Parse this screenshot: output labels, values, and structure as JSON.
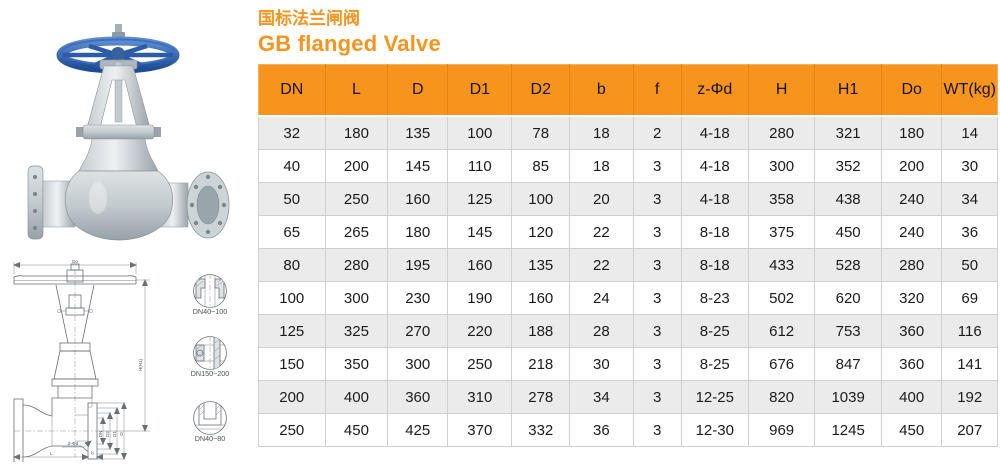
{
  "header": {
    "title_cn": "国标法兰闸阀",
    "title_en": "GB flanged Valve",
    "accent_color": "#F7941E"
  },
  "table": {
    "headers": [
      "DN",
      "L",
      "D",
      "D1",
      "D2",
      "b",
      "f",
      "z-Φd",
      "H",
      "H1",
      "Do",
      "WT(kg)"
    ],
    "rows": [
      [
        "32",
        "180",
        "135",
        "100",
        "78",
        "18",
        "2",
        "4-18",
        "280",
        "321",
        "180",
        "14"
      ],
      [
        "40",
        "200",
        "145",
        "110",
        "85",
        "18",
        "3",
        "4-18",
        "300",
        "352",
        "200",
        "30"
      ],
      [
        "50",
        "250",
        "160",
        "125",
        "100",
        "20",
        "3",
        "4-18",
        "358",
        "438",
        "240",
        "34"
      ],
      [
        "65",
        "265",
        "180",
        "145",
        "120",
        "22",
        "3",
        "8-18",
        "375",
        "450",
        "240",
        "36"
      ],
      [
        "80",
        "280",
        "195",
        "160",
        "135",
        "22",
        "3",
        "8-18",
        "433",
        "528",
        "280",
        "50"
      ],
      [
        "100",
        "300",
        "230",
        "190",
        "160",
        "24",
        "3",
        "8-23",
        "502",
        "620",
        "320",
        "69"
      ],
      [
        "125",
        "325",
        "270",
        "220",
        "188",
        "28",
        "3",
        "8-25",
        "612",
        "753",
        "360",
        "116"
      ],
      [
        "150",
        "350",
        "300",
        "250",
        "218",
        "30",
        "3",
        "8-25",
        "676",
        "847",
        "360",
        "141"
      ],
      [
        "200",
        "400",
        "360",
        "310",
        "278",
        "34",
        "3",
        "12-25",
        "820",
        "1039",
        "400",
        "192"
      ],
      [
        "250",
        "450",
        "425",
        "370",
        "332",
        "36",
        "3",
        "12-30",
        "969",
        "1245",
        "450",
        "207"
      ]
    ],
    "header_bg": "#F7941E",
    "alt_row_bg": "#EBEBEB",
    "border_color": "#CFCFCF"
  },
  "photo": {
    "description": "GB flanged gate valve with blue handwheel",
    "handwheel_color": "#2d5ca7"
  },
  "drawing": {
    "dim_do": "Do",
    "dim_h": "H(H1)",
    "dim_l": "L",
    "dim_b": "b",
    "dim_z": "Z-Φd",
    "dim_labels": [
      "DN",
      "D2",
      "D1",
      "D"
    ],
    "details": [
      {
        "label": "DN40~100"
      },
      {
        "label": "DN150~200"
      },
      {
        "label": "DN40~80"
      }
    ]
  }
}
